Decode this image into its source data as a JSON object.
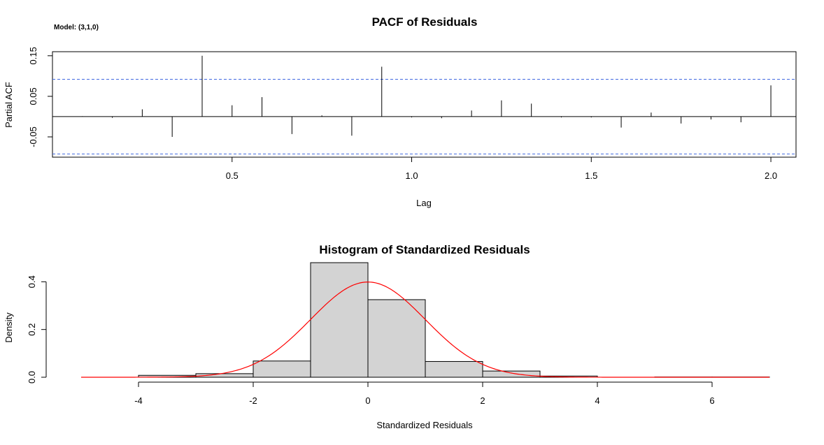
{
  "colors": {
    "background": "#ffffff",
    "axis": "#000000",
    "confidence_band": "#4169e1",
    "histogram_bar": "#d3d3d3",
    "density_curve": "#ff0000"
  },
  "chart_data": [
    {
      "type": "bar",
      "title": "PACF of Residuals",
      "annotation": "Model: (3,1,0)",
      "xlabel": "Lag",
      "ylabel": "Partial ACF",
      "xlim": [
        0.0,
        2.07
      ],
      "ylim": [
        -0.1,
        0.16
      ],
      "x_ticks": [
        0.5,
        1.0,
        1.5,
        2.0
      ],
      "x_tick_labels": [
        "0.5",
        "1.0",
        "1.5",
        "2.0"
      ],
      "y_ticks": [
        -0.05,
        0.05,
        0.15
      ],
      "y_tick_labels": [
        "-0.05",
        "0.05",
        "0.15"
      ],
      "confidence_limits": [
        -0.092,
        0.092
      ],
      "zero_line": true,
      "lags": [
        0.0833,
        0.1667,
        0.25,
        0.3333,
        0.4167,
        0.5,
        0.5833,
        0.6667,
        0.75,
        0.8333,
        0.9167,
        1.0,
        1.0833,
        1.1667,
        1.25,
        1.3333,
        1.4167,
        1.5,
        1.5833,
        1.6667,
        1.75,
        1.8333,
        1.9167,
        2.0
      ],
      "values": [
        0.001,
        -0.003,
        0.018,
        -0.05,
        0.15,
        0.028,
        0.048,
        -0.043,
        0.003,
        -0.047,
        0.123,
        -0.002,
        -0.004,
        0.015,
        0.04,
        0.032,
        -0.002,
        -0.002,
        -0.027,
        0.01,
        -0.017,
        -0.007,
        -0.014,
        0.077
      ]
    },
    {
      "type": "bar",
      "title": "Histogram of Standardized Residuals",
      "xlabel": "Standardized Residuals",
      "ylabel": "Density",
      "xlim": [
        -5,
        7
      ],
      "ylim": [
        0,
        0.48
      ],
      "x_ticks": [
        -4,
        -2,
        0,
        2,
        4,
        6
      ],
      "x_tick_labels": [
        "-4",
        "-2",
        "0",
        "2",
        "4",
        "6"
      ],
      "y_ticks": [
        0,
        0.2,
        0.4
      ],
      "y_tick_labels": [
        "0.0",
        "0.2",
        "0.4"
      ],
      "bin_edges": [
        -5,
        -4,
        -3,
        -2,
        -1,
        0,
        1,
        2,
        3,
        4,
        5,
        6,
        7
      ],
      "densities": [
        0.0,
        0.008,
        0.015,
        0.068,
        0.48,
        0.325,
        0.066,
        0.026,
        0.005,
        0.0,
        0.001,
        0.001
      ],
      "density_curve": "standard normal"
    }
  ]
}
